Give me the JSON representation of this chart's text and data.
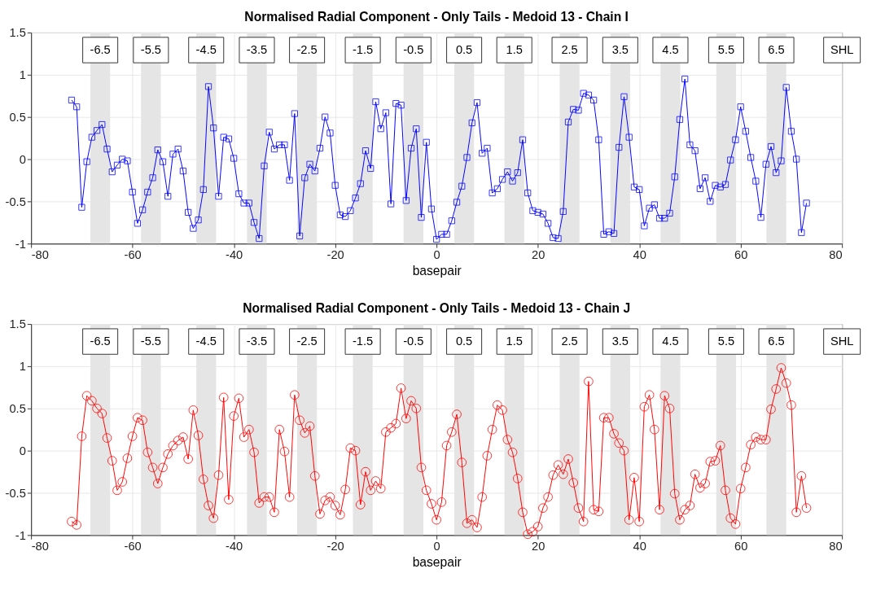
{
  "chart_data": [
    {
      "type": "line",
      "title": "Normalised Radial Component - Only Tails - Medoid 13 - Chain I",
      "xlabel": "basepair",
      "marker": "square",
      "grid": true,
      "x": [
        -72,
        -71,
        -70,
        -69,
        -68,
        -67,
        -66,
        -65,
        -64,
        -63,
        -62,
        -61,
        -60,
        -59,
        -58,
        -57,
        -56,
        -55,
        -54,
        -53,
        -52,
        -51,
        -50,
        -49,
        -48,
        -47,
        -46,
        -45,
        -44,
        -43,
        -42,
        -41,
        -40,
        -39,
        -38,
        -37,
        -36,
        -35,
        -34,
        -33,
        -32,
        -31,
        -30,
        -29,
        -28,
        -27,
        -26,
        -25,
        -24,
        -23,
        -22,
        -21,
        -20,
        -19,
        -18,
        -17,
        -16,
        -15,
        -14,
        -13,
        -12,
        -11,
        -10,
        -9,
        -8,
        -7,
        -6,
        -5,
        -4,
        -3,
        -2,
        -1,
        0,
        1,
        2,
        3,
        4,
        5,
        6,
        7,
        8,
        9,
        10,
        11,
        12,
        13,
        14,
        15,
        16,
        17,
        18,
        19,
        20,
        21,
        22,
        23,
        24,
        25,
        26,
        27,
        28,
        29,
        30,
        31,
        32,
        33,
        34,
        35,
        36,
        37,
        38,
        39,
        40,
        41,
        42,
        43,
        44,
        45,
        46,
        47,
        48,
        49,
        50,
        51,
        52,
        53,
        54,
        55,
        56,
        57,
        58,
        59,
        60,
        61,
        62,
        63,
        64,
        65,
        66,
        67,
        68,
        69,
        70,
        71,
        72,
        73
      ],
      "series": [
        {
          "color": "#0000ff",
          "values": [
            0.7,
            0.62,
            -0.57,
            -0.03,
            0.26,
            0.34,
            0.41,
            0.12,
            -0.15,
            -0.07,
            0.0,
            -0.02,
            -0.39,
            -0.76,
            -0.6,
            -0.39,
            -0.22,
            0.11,
            -0.03,
            -0.44,
            0.06,
            0.12,
            -0.14,
            -0.63,
            -0.82,
            -0.72,
            -0.36,
            0.86,
            0.37,
            -0.44,
            0.26,
            0.24,
            0.01,
            -0.41,
            -0.52,
            -0.52,
            -0.75,
            -0.94,
            -0.08,
            0.32,
            0.12,
            0.17,
            0.17,
            -0.25,
            0.54,
            -0.91,
            -0.22,
            -0.06,
            -0.14,
            0.13,
            0.5,
            0.31,
            -0.31,
            -0.66,
            -0.68,
            -0.61,
            -0.46,
            -0.29,
            0.1,
            -0.11,
            0.68,
            0.36,
            0.55,
            -0.53,
            0.66,
            0.64,
            -0.49,
            0.13,
            0.36,
            -0.69,
            0.2,
            -0.59,
            -0.95,
            -0.89,
            -0.89,
            -0.73,
            -0.51,
            -0.32,
            0.02,
            0.43,
            0.67,
            0.07,
            0.13,
            -0.4,
            -0.35,
            -0.24,
            -0.15,
            -0.26,
            -0.16,
            0.23,
            -0.4,
            -0.61,
            -0.63,
            -0.65,
            -0.76,
            -0.93,
            -0.94,
            -0.62,
            0.44,
            0.59,
            0.58,
            0.78,
            0.76,
            0.7,
            0.23,
            -0.89,
            -0.86,
            -0.88,
            0.14,
            0.74,
            0.26,
            -0.33,
            -0.36,
            -0.79,
            -0.58,
            -0.54,
            -0.7,
            -0.7,
            -0.64,
            -0.21,
            0.47,
            0.95,
            0.17,
            0.1,
            -0.35,
            -0.22,
            -0.5,
            -0.31,
            -0.33,
            -0.3,
            -0.01,
            0.23,
            0.62,
            0.33,
            0.02,
            -0.26,
            -0.69,
            -0.06,
            0.15,
            -0.16,
            -0.02,
            0.85,
            0.33,
            0.0,
            -0.87,
            -0.52
          ]
        }
      ],
      "xlim": [
        -80,
        80
      ],
      "xticks": [
        -80,
        -60,
        -40,
        -20,
        0,
        20,
        40,
        60,
        80
      ],
      "ylim": [
        -1,
        1.5
      ],
      "yticks": [
        -1,
        -0.5,
        0,
        0.5,
        1,
        1.5
      ],
      "bands": [
        {
          "axis": "x",
          "from": -68.3,
          "to": -64.4,
          "label": "-6.5",
          "color": "#e5e5e5"
        },
        {
          "axis": "x",
          "from": -58.3,
          "to": -54.4,
          "label": "-5.5",
          "color": "#e5e5e5"
        },
        {
          "axis": "x",
          "from": -47.4,
          "to": -43.5,
          "label": "-4.5",
          "color": "#e5e5e5"
        },
        {
          "axis": "x",
          "from": -37.4,
          "to": -33.5,
          "label": "-3.5",
          "color": "#e5e5e5"
        },
        {
          "axis": "x",
          "from": -27.5,
          "to": -23.6,
          "label": "-2.5",
          "color": "#e5e5e5"
        },
        {
          "axis": "x",
          "from": -16.5,
          "to": -12.6,
          "label": "-1.5",
          "color": "#e5e5e5"
        },
        {
          "axis": "x",
          "from": -6.5,
          "to": -2.6,
          "label": "-0.5",
          "color": "#e5e5e5"
        },
        {
          "axis": "x",
          "from": 3.5,
          "to": 7.4,
          "label": "0.5",
          "color": "#e5e5e5"
        },
        {
          "axis": "x",
          "from": 13.4,
          "to": 17.3,
          "label": "1.5",
          "color": "#e5e5e5"
        },
        {
          "axis": "x",
          "from": 24.3,
          "to": 28.2,
          "label": "2.5",
          "color": "#e5e5e5"
        },
        {
          "axis": "x",
          "from": 34.3,
          "to": 38.2,
          "label": "3.5",
          "color": "#e5e5e5"
        },
        {
          "axis": "x",
          "from": 44.2,
          "to": 48.1,
          "label": "4.5",
          "color": "#e5e5e5"
        },
        {
          "axis": "x",
          "from": 55.2,
          "to": 59.1,
          "label": "5.5",
          "color": "#e5e5e5"
        },
        {
          "axis": "x",
          "from": 65.1,
          "to": 69.0,
          "label": "6.5",
          "color": "#e5e5e5"
        }
      ],
      "annotations": [
        "SHL"
      ]
    },
    {
      "type": "line",
      "title": "Normalised Radial Component - Only Tails - Medoid 13 - Chain J",
      "xlabel": "basepair",
      "marker": "circle",
      "grid": true,
      "x": [
        -72,
        -71,
        -70,
        -69,
        -68,
        -67,
        -66,
        -65,
        -64,
        -63,
        -62,
        -61,
        -60,
        -59,
        -58,
        -57,
        -56,
        -55,
        -54,
        -53,
        -52,
        -51,
        -50,
        -49,
        -48,
        -47,
        -46,
        -45,
        -44,
        -43,
        -42,
        -41,
        -40,
        -39,
        -38,
        -37,
        -36,
        -35,
        -34,
        -33,
        -32,
        -31,
        -30,
        -29,
        -28,
        -27,
        -26,
        -25,
        -24,
        -23,
        -22,
        -21,
        -20,
        -19,
        -18,
        -17,
        -16,
        -15,
        -14,
        -13,
        -12,
        -11,
        -10,
        -9,
        -8,
        -7,
        -6,
        -5,
        -4,
        -3,
        -2,
        -1,
        0,
        1,
        2,
        3,
        4,
        5,
        6,
        7,
        8,
        9,
        10,
        11,
        12,
        13,
        14,
        15,
        16,
        17,
        18,
        19,
        20,
        21,
        22,
        23,
        24,
        25,
        26,
        27,
        28,
        29,
        30,
        31,
        32,
        33,
        34,
        35,
        36,
        37,
        38,
        39,
        40,
        41,
        42,
        43,
        44,
        45,
        46,
        47,
        48,
        49,
        50,
        51,
        52,
        53,
        54,
        55,
        56,
        57,
        58,
        59,
        60,
        61,
        62,
        63,
        64,
        65,
        66,
        67,
        68,
        69,
        70,
        71,
        72,
        73
      ],
      "series": [
        {
          "color": "#ff0000",
          "values": [
            -0.84,
            -0.88,
            0.17,
            0.65,
            0.59,
            0.5,
            0.44,
            0.15,
            -0.12,
            -0.47,
            -0.37,
            -0.09,
            0.17,
            0.39,
            0.36,
            -0.02,
            -0.2,
            -0.39,
            -0.2,
            -0.04,
            0.06,
            0.12,
            0.16,
            -0.1,
            0.48,
            0.18,
            -0.34,
            -0.65,
            -0.8,
            -0.29,
            0.63,
            -0.58,
            0.41,
            0.62,
            0.16,
            0.25,
            -0.02,
            -0.62,
            -0.55,
            -0.55,
            -0.73,
            0.25,
            -0.01,
            -0.55,
            0.66,
            0.36,
            0.21,
            0.29,
            -0.3,
            -0.75,
            -0.59,
            -0.55,
            -0.65,
            -0.76,
            -0.46,
            0.03,
            0.0,
            -0.64,
            -0.25,
            -0.47,
            -0.36,
            -0.45,
            0.22,
            0.27,
            0.32,
            0.74,
            0.38,
            0.59,
            0.5,
            -0.2,
            -0.47,
            -0.63,
            -0.82,
            -0.61,
            0.06,
            0.22,
            0.43,
            -0.14,
            -0.86,
            -0.82,
            -0.91,
            -0.55,
            -0.06,
            0.25,
            0.54,
            0.48,
            0.13,
            -0.02,
            -0.33,
            -0.73,
            -0.99,
            -0.96,
            -0.9,
            -0.68,
            -0.55,
            -0.29,
            -0.17,
            -0.28,
            -0.1,
            -0.38,
            -0.68,
            -0.84,
            0.82,
            -0.7,
            -0.72,
            0.39,
            0.39,
            0.2,
            0.09,
            0.0,
            -0.82,
            -0.32,
            -0.84,
            0.52,
            0.66,
            0.25,
            -0.7,
            0.65,
            0.5,
            -0.51,
            -0.82,
            -0.7,
            -0.65,
            -0.28,
            -0.44,
            -0.39,
            -0.13,
            -0.12,
            0.06,
            -0.47,
            -0.8,
            -0.87,
            -0.45,
            -0.2,
            0.07,
            0.16,
            0.13,
            0.13,
            0.49,
            0.73,
            0.98,
            0.8,
            0.54,
            -0.73,
            -0.3,
            -0.68
          ]
        }
      ],
      "xlim": [
        -80,
        80
      ],
      "xticks": [
        -80,
        -60,
        -40,
        -20,
        0,
        20,
        40,
        60,
        80
      ],
      "ylim": [
        -1,
        1.5
      ],
      "yticks": [
        -1,
        -0.5,
        0,
        0.5,
        1,
        1.5
      ],
      "bands": [
        {
          "axis": "x",
          "from": -68.3,
          "to": -64.4,
          "label": "-6.5",
          "color": "#e5e5e5"
        },
        {
          "axis": "x",
          "from": -58.3,
          "to": -54.4,
          "label": "-5.5",
          "color": "#e5e5e5"
        },
        {
          "axis": "x",
          "from": -47.4,
          "to": -43.5,
          "label": "-4.5",
          "color": "#e5e5e5"
        },
        {
          "axis": "x",
          "from": -37.4,
          "to": -33.5,
          "label": "-3.5",
          "color": "#e5e5e5"
        },
        {
          "axis": "x",
          "from": -27.5,
          "to": -23.6,
          "label": "-2.5",
          "color": "#e5e5e5"
        },
        {
          "axis": "x",
          "from": -16.5,
          "to": -12.6,
          "label": "-1.5",
          "color": "#e5e5e5"
        },
        {
          "axis": "x",
          "from": -6.5,
          "to": -2.6,
          "label": "-0.5",
          "color": "#e5e5e5"
        },
        {
          "axis": "x",
          "from": 3.5,
          "to": 7.4,
          "label": "0.5",
          "color": "#e5e5e5"
        },
        {
          "axis": "x",
          "from": 13.4,
          "to": 17.3,
          "label": "1.5",
          "color": "#e5e5e5"
        },
        {
          "axis": "x",
          "from": 24.3,
          "to": 28.2,
          "label": "2.5",
          "color": "#e5e5e5"
        },
        {
          "axis": "x",
          "from": 34.3,
          "to": 38.2,
          "label": "3.5",
          "color": "#e5e5e5"
        },
        {
          "axis": "x",
          "from": 44.2,
          "to": 48.1,
          "label": "4.5",
          "color": "#e5e5e5"
        },
        {
          "axis": "x",
          "from": 55.2,
          "to": 59.1,
          "label": "5.5",
          "color": "#e5e5e5"
        },
        {
          "axis": "x",
          "from": 65.1,
          "to": 69.0,
          "label": "6.5",
          "color": "#e5e5e5"
        }
      ],
      "annotations": [
        "SHL"
      ]
    }
  ]
}
